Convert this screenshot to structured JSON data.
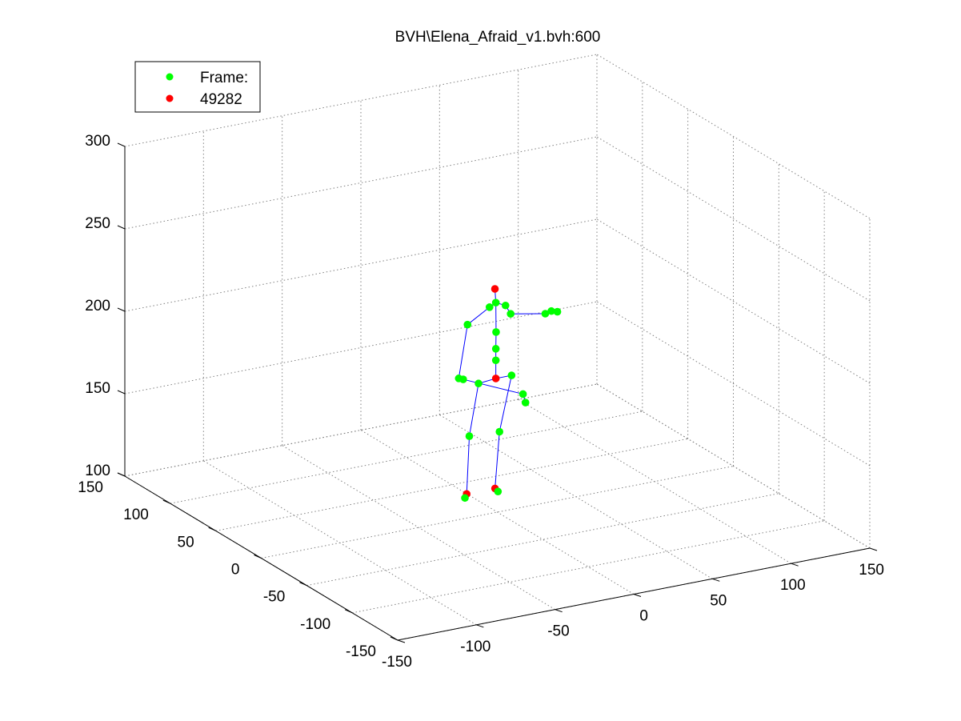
{
  "chart_data": {
    "type": "scatter",
    "title": "BVH\\Elena_Afraid_v1.bvh:600",
    "axes": {
      "x": {
        "range": [
          -150,
          150
        ],
        "ticks": [
          -150,
          -100,
          -50,
          0,
          50,
          100,
          150
        ]
      },
      "y": {
        "range": [
          -150,
          150
        ],
        "ticks": [
          150,
          100,
          50,
          0,
          -50,
          -100,
          -150
        ]
      },
      "z": {
        "range": [
          100,
          300
        ],
        "ticks": [
          100,
          150,
          200,
          250,
          300
        ]
      }
    },
    "grid": true,
    "legend": {
      "placement": "top-left",
      "entries": [
        {
          "label": "Frame:",
          "color": "#00ff00"
        },
        {
          "label": "49282",
          "color": "#ff0000"
        }
      ]
    },
    "colors": {
      "joint": "#00ff00",
      "key_joint": "#ff0000",
      "bone": "#0000ff",
      "grid": "#808080"
    },
    "skeleton": {
      "joints": [
        {
          "id": "hips",
          "color": "red",
          "xyz": [
            6,
            12,
            176
          ]
        },
        {
          "id": "spine1",
          "color": "green",
          "xyz": [
            6,
            12,
            187
          ]
        },
        {
          "id": "spine2",
          "color": "green",
          "xyz": [
            6,
            12,
            194
          ]
        },
        {
          "id": "spine3",
          "color": "green",
          "xyz": [
            5,
            10,
            205
          ]
        },
        {
          "id": "neck",
          "color": "green",
          "xyz": [
            6,
            12,
            222
          ]
        },
        {
          "id": "head_top",
          "color": "red",
          "xyz": [
            6,
            13,
            230
          ]
        },
        {
          "id": "l_collar",
          "color": "green",
          "xyz": [
            11,
            10,
            220
          ]
        },
        {
          "id": "l_shoulder",
          "color": "green",
          "xyz": [
            16,
            13,
            213
          ]
        },
        {
          "id": "l_elbow",
          "color": "green",
          "xyz": [
            38,
            13,
            209
          ]
        },
        {
          "id": "l_wrist",
          "color": "green",
          "xyz": [
            43,
            15,
            209
          ]
        },
        {
          "id": "l_hand",
          "color": "green",
          "xyz": [
            48,
            17,
            207
          ]
        },
        {
          "id": "r_collar",
          "color": "green",
          "xyz": [
            2,
            12,
            220
          ]
        },
        {
          "id": "r_shoulder",
          "color": "green",
          "xyz": [
            -12,
            12,
            212
          ]
        },
        {
          "id": "r_elbow",
          "color": "green",
          "xyz": [
            -17,
            13,
            180
          ]
        },
        {
          "id": "r_wrist",
          "color": "green",
          "xyz": [
            -13,
            15,
            178
          ]
        },
        {
          "id": "r_hand",
          "color": "green",
          "xyz": [
            25,
            15,
            162
          ]
        },
        {
          "id": "r_hand_2",
          "color": "green",
          "xyz": [
            26,
            14,
            157
          ]
        },
        {
          "id": "l_hip",
          "color": "green",
          "xyz": [
            16,
            12,
            176
          ]
        },
        {
          "id": "r_hip",
          "color": "green",
          "xyz": [
            -5,
            12,
            175
          ]
        },
        {
          "id": "r_knee",
          "color": "green",
          "xyz": [
            -12,
            10,
            145
          ]
        },
        {
          "id": "l_knee",
          "color": "green",
          "xyz": [
            6,
            8,
            145
          ]
        },
        {
          "id": "r_ankle",
          "color": "red",
          "xyz": [
            -16,
            6,
            112
          ]
        },
        {
          "id": "l_ankle",
          "color": "red",
          "xyz": [
            2,
            6,
            112
          ]
        },
        {
          "id": "r_toe",
          "color": "green",
          "xyz": [
            -20,
            1,
            112
          ]
        },
        {
          "id": "l_toe",
          "color": "green",
          "xyz": [
            1,
            1,
            112
          ]
        }
      ],
      "bones": [
        [
          "hips",
          "spine1"
        ],
        [
          "spine1",
          "spine2"
        ],
        [
          "spine2",
          "spine3"
        ],
        [
          "spine3",
          "neck"
        ],
        [
          "neck",
          "head_top"
        ],
        [
          "neck",
          "l_collar"
        ],
        [
          "l_collar",
          "l_shoulder"
        ],
        [
          "l_shoulder",
          "l_elbow"
        ],
        [
          "l_elbow",
          "l_wrist"
        ],
        [
          "l_wrist",
          "l_hand"
        ],
        [
          "neck",
          "r_collar"
        ],
        [
          "r_collar",
          "r_shoulder"
        ],
        [
          "r_shoulder",
          "r_elbow"
        ],
        [
          "r_elbow",
          "r_wrist"
        ],
        [
          "r_wrist",
          "r_hand"
        ],
        [
          "r_hand",
          "r_hand_2"
        ],
        [
          "hips",
          "l_hip"
        ],
        [
          "hips",
          "r_hip"
        ],
        [
          "r_hip",
          "r_knee"
        ],
        [
          "r_knee",
          "r_ankle"
        ],
        [
          "r_ankle",
          "r_toe"
        ],
        [
          "l_hip",
          "l_knee"
        ],
        [
          "l_knee",
          "l_ankle"
        ],
        [
          "l_ankle",
          "l_toe"
        ]
      ]
    }
  }
}
